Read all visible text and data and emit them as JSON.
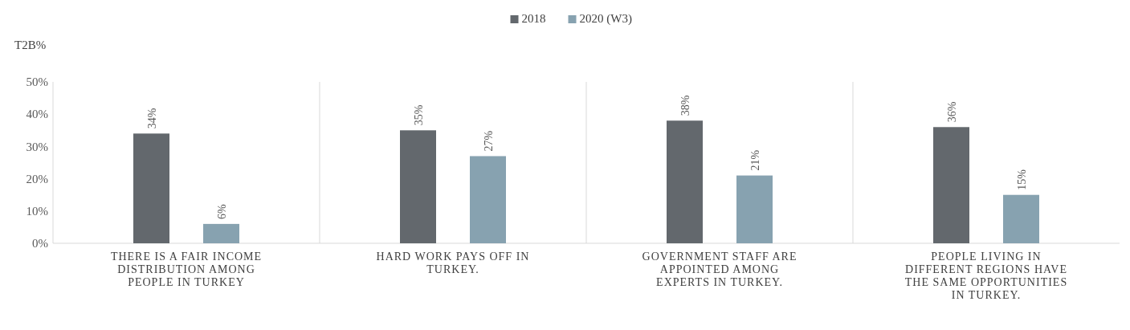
{
  "chart_data": {
    "type": "bar",
    "ylabel": "T2B%",
    "categories": [
      "THERE IS A FAIR INCOME DISTRIBUTION AMONG PEOPLE IN TURKEY",
      "HARD WORK PAYS OFF IN TURKEY.",
      "GOVERNMENT STAFF ARE APPOINTED AMONG EXPERTS IN TURKEY.",
      "PEOPLE LIVING IN DIFFERENT REGIONS HAVE THE SAME OPPORTUNITIES IN TURKEY."
    ],
    "series": [
      {
        "name": "2018",
        "color": "#63686d",
        "values": [
          34,
          35,
          38,
          36
        ],
        "value_labels": [
          "34%",
          "35%",
          "38%",
          "36%"
        ]
      },
      {
        "name": "2020 (W3)",
        "color": "#87a2b0",
        "values": [
          6,
          27,
          21,
          15
        ],
        "value_labels": [
          "6%",
          "27%",
          "21%",
          "15%"
        ]
      }
    ],
    "ylim": [
      0,
      50
    ],
    "yticks": [
      {
        "value": 0,
        "label": "0%"
      },
      {
        "value": 10,
        "label": "10%"
      },
      {
        "value": 20,
        "label": "20%"
      },
      {
        "value": 30,
        "label": "30%"
      },
      {
        "value": 40,
        "label": "40%"
      },
      {
        "value": 50,
        "label": "50%"
      }
    ],
    "grid": "x",
    "legend": "top"
  }
}
